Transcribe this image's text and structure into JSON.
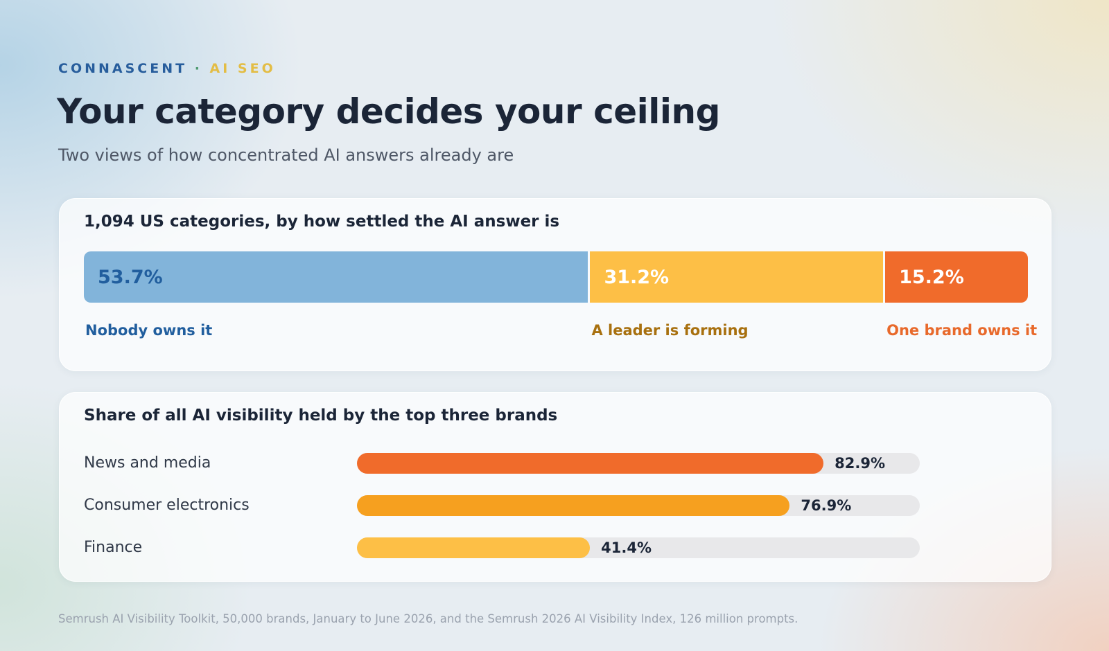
{
  "header": {
    "brand": "CONNASCENT",
    "separator": "·",
    "section": "AI SEO",
    "title": "Your category decides your ceiling",
    "subtitle": "Two views of how concentrated AI answers already are"
  },
  "footnote": "Semrush AI Visibility Toolkit, 50,000 brands, January to June 2026, and the Semrush 2026 AI Visibility Index, 126 million prompts.",
  "colors": {
    "blue": "#82b4da",
    "blue_text": "#215e9e",
    "yellow": "#fdbf46",
    "yellow_text": "#a8700f",
    "orange": "#f06b2b",
    "orange_text": "#e8692b",
    "amber": "#f6a01f"
  },
  "chart_data": [
    {
      "type": "bar",
      "stacked": true,
      "orientation": "horizontal",
      "title": "1,094 US categories, by how settled the AI answer is",
      "unit": "%",
      "segments": [
        {
          "label": "Nobody owns it",
          "value": 53.7,
          "value_label": "53.7%",
          "color": "#82b4da",
          "text_color": "#215e9e",
          "label_color": "#215e9e"
        },
        {
          "label": "A leader is forming",
          "value": 31.2,
          "value_label": "31.2%",
          "color": "#fdbf46",
          "text_color": "#ffffff",
          "label_color": "#a8700f"
        },
        {
          "label": "One brand owns it",
          "value": 15.2,
          "value_label": "15.2%",
          "color": "#f06b2b",
          "text_color": "#ffffff",
          "label_color": "#e8692b"
        }
      ]
    },
    {
      "type": "bar",
      "orientation": "horizontal",
      "title": "Share of all AI visibility held by the top three brands",
      "unit": "%",
      "xlim": [
        0,
        100
      ],
      "categories": [
        "News and media",
        "Consumer electronics",
        "Finance"
      ],
      "values": [
        82.9,
        76.9,
        41.4
      ],
      "value_labels": [
        "82.9%",
        "76.9%",
        "41.4%"
      ],
      "colors": [
        "#f06b2b",
        "#f6a01f",
        "#fdbf46"
      ]
    }
  ]
}
